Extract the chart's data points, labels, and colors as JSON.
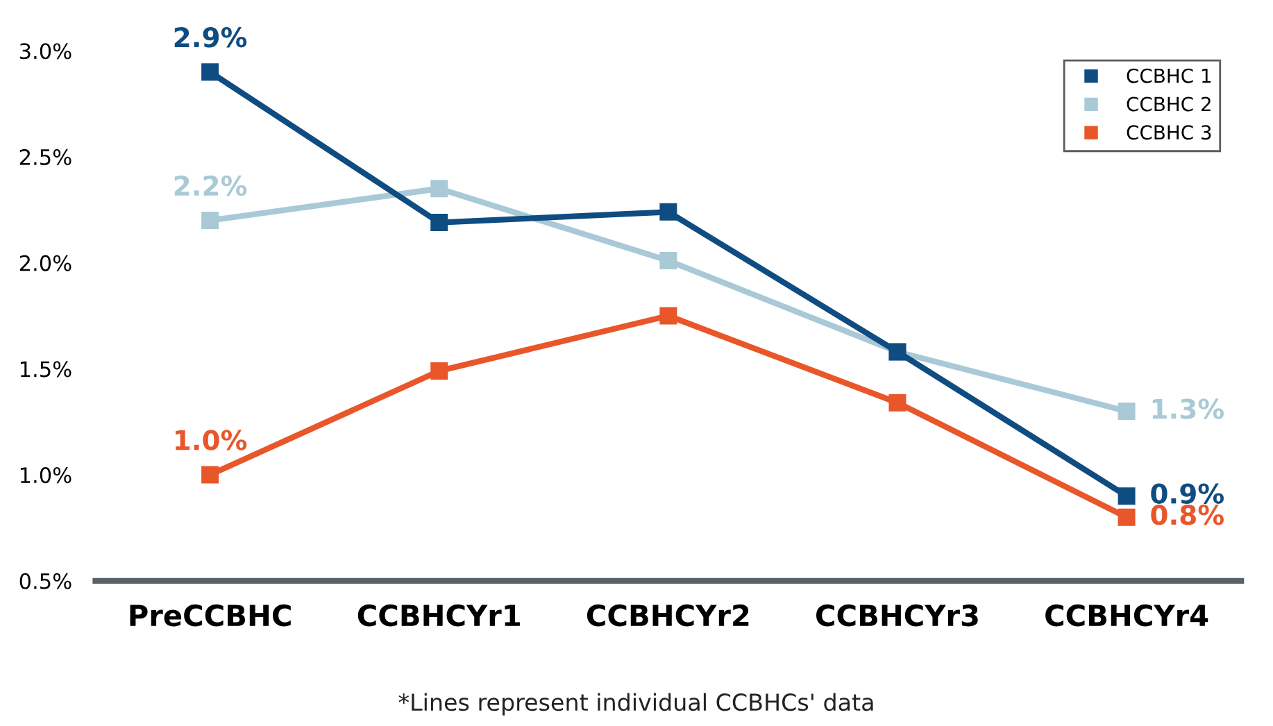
{
  "chart_data": {
    "type": "line",
    "categories": [
      "PreCCBHC",
      "CCBHCYr1",
      "CCBHCYr2",
      "CCBHCYr3",
      "CCBHCYr4"
    ],
    "series": [
      {
        "name": "CCBHC 1",
        "color": "#0f4c81",
        "values": [
          2.9,
          2.19,
          2.24,
          1.58,
          0.9
        ],
        "value_labels": [
          "2.9%",
          null,
          null,
          null,
          "0.9%"
        ]
      },
      {
        "name": "CCBHC 2",
        "color": "#a9c9d6",
        "values": [
          2.2,
          2.35,
          2.01,
          1.58,
          1.3
        ],
        "value_labels": [
          "2.2%",
          null,
          null,
          null,
          "1.3%"
        ]
      },
      {
        "name": "CCBHC 3",
        "color": "#e8562a",
        "values": [
          1.0,
          1.49,
          1.75,
          1.34,
          0.8
        ],
        "value_labels": [
          "1.0%",
          null,
          null,
          null,
          "0.8%"
        ]
      }
    ],
    "ylim": [
      0.5,
      3.0
    ],
    "yticks": [
      {
        "value": 0.5,
        "label": "0.5%"
      },
      {
        "value": 1.0,
        "label": "1.0%"
      },
      {
        "value": 1.5,
        "label": "1.5%"
      },
      {
        "value": 2.0,
        "label": "2.0%"
      },
      {
        "value": 2.5,
        "label": "2.5%"
      },
      {
        "value": 3.0,
        "label": "3.0%"
      }
    ],
    "grid": false,
    "legend": "top right",
    "marker": "square",
    "line_style": "solid",
    "annotations": [
      "*Lines represent individual CCBHCs' data"
    ]
  }
}
